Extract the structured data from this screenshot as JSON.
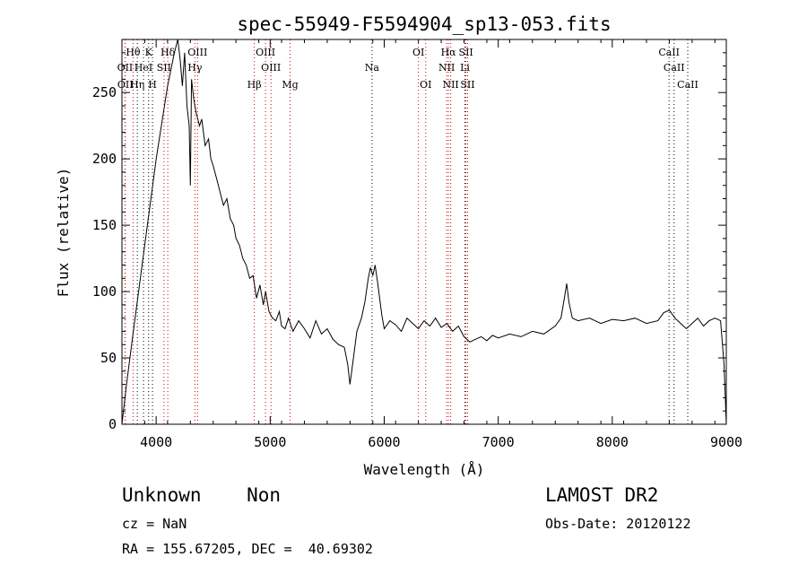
{
  "chart_data": {
    "type": "line",
    "title": "spec-55949-F5594904_sp13-053.fits",
    "xlabel": "Wavelength (Å)",
    "ylabel": "Flux (relative)",
    "xlim": [
      3700,
      9000
    ],
    "ylim": [
      0,
      290
    ],
    "x_ticks": [
      4000,
      5000,
      6000,
      7000,
      8000,
      9000
    ],
    "y_ticks": [
      0,
      50,
      100,
      150,
      200,
      250
    ],
    "grid": false,
    "series": [
      {
        "values_xy": [
          [
            3700,
            0
          ],
          [
            3740,
            30
          ],
          [
            3800,
            70
          ],
          [
            3900,
            135
          ],
          [
            4000,
            200
          ],
          [
            4100,
            255
          ],
          [
            4160,
            280
          ],
          [
            4190,
            290
          ],
          [
            4210,
            275
          ],
          [
            4230,
            255
          ],
          [
            4250,
            280
          ],
          [
            4270,
            240
          ],
          [
            4290,
            225
          ],
          [
            4300,
            180
          ],
          [
            4310,
            260
          ],
          [
            4330,
            245
          ],
          [
            4350,
            235
          ],
          [
            4380,
            225
          ],
          [
            4400,
            230
          ],
          [
            4430,
            210
          ],
          [
            4460,
            215
          ],
          [
            4480,
            200
          ],
          [
            4500,
            195
          ],
          [
            4530,
            185
          ],
          [
            4560,
            175
          ],
          [
            4590,
            165
          ],
          [
            4620,
            170
          ],
          [
            4650,
            155
          ],
          [
            4680,
            150
          ],
          [
            4700,
            140
          ],
          [
            4730,
            135
          ],
          [
            4760,
            125
          ],
          [
            4790,
            120
          ],
          [
            4820,
            110
          ],
          [
            4850,
            112
          ],
          [
            4880,
            95
          ],
          [
            4910,
            105
          ],
          [
            4940,
            90
          ],
          [
            4960,
            100
          ],
          [
            4990,
            85
          ],
          [
            5020,
            80
          ],
          [
            5050,
            78
          ],
          [
            5080,
            85
          ],
          [
            5100,
            74
          ],
          [
            5130,
            72
          ],
          [
            5160,
            80
          ],
          [
            5200,
            70
          ],
          [
            5250,
            78
          ],
          [
            5300,
            72
          ],
          [
            5350,
            65
          ],
          [
            5400,
            78
          ],
          [
            5450,
            68
          ],
          [
            5500,
            72
          ],
          [
            5550,
            64
          ],
          [
            5600,
            60
          ],
          [
            5650,
            58
          ],
          [
            5680,
            45
          ],
          [
            5700,
            30
          ],
          [
            5730,
            50
          ],
          [
            5760,
            70
          ],
          [
            5800,
            80
          ],
          [
            5830,
            92
          ],
          [
            5860,
            110
          ],
          [
            5880,
            118
          ],
          [
            5900,
            112
          ],
          [
            5920,
            120
          ],
          [
            5940,
            108
          ],
          [
            5960,
            95
          ],
          [
            5980,
            82
          ],
          [
            6000,
            72
          ],
          [
            6050,
            78
          ],
          [
            6100,
            75
          ],
          [
            6150,
            70
          ],
          [
            6200,
            80
          ],
          [
            6250,
            76
          ],
          [
            6300,
            72
          ],
          [
            6350,
            78
          ],
          [
            6400,
            74
          ],
          [
            6450,
            80
          ],
          [
            6500,
            73
          ],
          [
            6550,
            76
          ],
          [
            6600,
            70
          ],
          [
            6650,
            74
          ],
          [
            6700,
            66
          ],
          [
            6750,
            62
          ],
          [
            6800,
            64
          ],
          [
            6850,
            66
          ],
          [
            6900,
            63
          ],
          [
            6950,
            67
          ],
          [
            7000,
            65
          ],
          [
            7100,
            68
          ],
          [
            7200,
            66
          ],
          [
            7300,
            70
          ],
          [
            7400,
            68
          ],
          [
            7500,
            74
          ],
          [
            7550,
            80
          ],
          [
            7580,
            95
          ],
          [
            7600,
            106
          ],
          [
            7620,
            92
          ],
          [
            7650,
            80
          ],
          [
            7700,
            78
          ],
          [
            7800,
            80
          ],
          [
            7900,
            76
          ],
          [
            8000,
            79
          ],
          [
            8100,
            78
          ],
          [
            8200,
            80
          ],
          [
            8300,
            76
          ],
          [
            8400,
            78
          ],
          [
            8450,
            84
          ],
          [
            8500,
            86
          ],
          [
            8550,
            80
          ],
          [
            8600,
            76
          ],
          [
            8650,
            72
          ],
          [
            8700,
            76
          ],
          [
            8750,
            80
          ],
          [
            8800,
            74
          ],
          [
            8850,
            78
          ],
          [
            8900,
            80
          ],
          [
            8950,
            78
          ],
          [
            8980,
            45
          ],
          [
            9000,
            0
          ]
        ]
      }
    ],
    "line_markers": [
      {
        "label": "Hθ",
        "x": 3798,
        "row": 0
      },
      {
        "label": "K",
        "x": 3934,
        "row": 0
      },
      {
        "label": "Hδ",
        "x": 4102,
        "row": 0
      },
      {
        "label": "OIII",
        "x": 4363,
        "row": 0
      },
      {
        "label": "OIII",
        "x": 4959,
        "row": 0
      },
      {
        "label": "OI",
        "x": 6300,
        "row": 0
      },
      {
        "label": "Hα",
        "x": 6563,
        "row": 0
      },
      {
        "label": "SII",
        "x": 6717,
        "row": 0
      },
      {
        "label": "CaII",
        "x": 8498,
        "row": 0
      },
      {
        "label": "OII",
        "x": 3727,
        "row": 1
      },
      {
        "label": "HeI",
        "x": 3889,
        "row": 1
      },
      {
        "label": "SII",
        "x": 4069,
        "row": 1
      },
      {
        "label": "Hγ",
        "x": 4340,
        "row": 1
      },
      {
        "label": "OIII",
        "x": 5007,
        "row": 1
      },
      {
        "label": "Na",
        "x": 5893,
        "row": 1
      },
      {
        "label": "NII",
        "x": 6548,
        "row": 1
      },
      {
        "label": "Li",
        "x": 6708,
        "row": 1
      },
      {
        "label": "CaII",
        "x": 8542,
        "row": 1
      },
      {
        "label": "OII",
        "x": 3729,
        "row": 2
      },
      {
        "label": "Hη",
        "x": 3835,
        "row": 2
      },
      {
        "label": "H",
        "x": 3968,
        "row": 2
      },
      {
        "label": "Hβ",
        "x": 4861,
        "row": 2
      },
      {
        "label": "Mg",
        "x": 5175,
        "row": 2
      },
      {
        "label": "OI",
        "x": 6364,
        "row": 2
      },
      {
        "label": "NII",
        "x": 6583,
        "row": 2
      },
      {
        "label": "SII",
        "x": 6731,
        "row": 2
      },
      {
        "label": "CaII",
        "x": 8662,
        "row": 2
      }
    ]
  },
  "info": {
    "class_text": "Unknown    Non",
    "cz_text": "cz = NaN",
    "radec_text": "RA = 155.67205, DEC =  40.69302",
    "survey_text": "LAMOST DR2",
    "obsdate_text": "Obs-Date: 20120122"
  },
  "colors": {
    "line": "#000000",
    "marker_red": "#cc0000",
    "marker_black": "#000000"
  }
}
